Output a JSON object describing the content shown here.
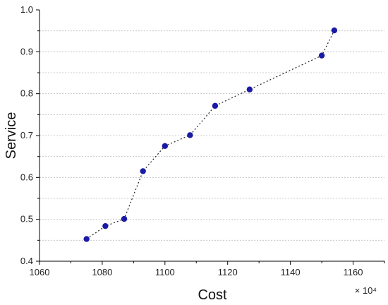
{
  "chart_data": {
    "type": "scatter",
    "title": "",
    "xlabel": "Cost",
    "ylabel": "Service",
    "x_multiplier_label": "× 10⁴",
    "xlim": [
      1060,
      1170
    ],
    "ylim": [
      0.4,
      1.0
    ],
    "x_ticks": [
      1060,
      1080,
      1100,
      1120,
      1140,
      1160
    ],
    "x_tick_labels": [
      "1060",
      "1080",
      "1100",
      "1120",
      "1140",
      "1160"
    ],
    "y_ticks": [
      0.4,
      0.5,
      0.6,
      0.7,
      0.8,
      0.9,
      1.0
    ],
    "y_tick_labels": [
      "0.4",
      "0.5",
      "0.6",
      "0.7",
      "0.8",
      "0.9",
      "1.0"
    ],
    "grid": "horizontal-dotted",
    "connect_points": true,
    "colors": {
      "marker": "#1a1aa6",
      "line": "#222222",
      "grid": "#bdbdbd",
      "axis": "#000000"
    },
    "series": [
      {
        "x": [
          1075,
          1081,
          1087,
          1093,
          1100,
          1108,
          1116,
          1127,
          1150,
          1154
        ],
        "y": [
          0.453,
          0.484,
          0.501,
          0.615,
          0.675,
          0.701,
          0.771,
          0.81,
          0.891,
          0.951
        ]
      }
    ]
  }
}
